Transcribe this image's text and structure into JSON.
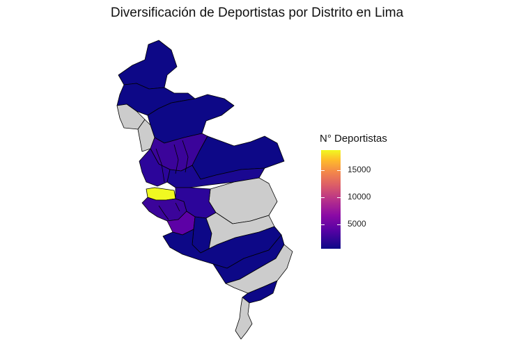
{
  "title": "Diversificación de Deportistas por Distrito en Lima",
  "legend": {
    "title": "N° Deportistas",
    "ticks": [
      "15000",
      "10000",
      "5000"
    ],
    "tick_values": [
      15000,
      10000,
      5000
    ],
    "min": 0,
    "max": 18000,
    "palette": "plasma"
  },
  "colors": {
    "low": "#0d0887",
    "mid_low": "#3b049a",
    "mid": "#5d01a6",
    "high": "#f0f921",
    "no_data": "#cccccc",
    "border": "#000000"
  }
}
